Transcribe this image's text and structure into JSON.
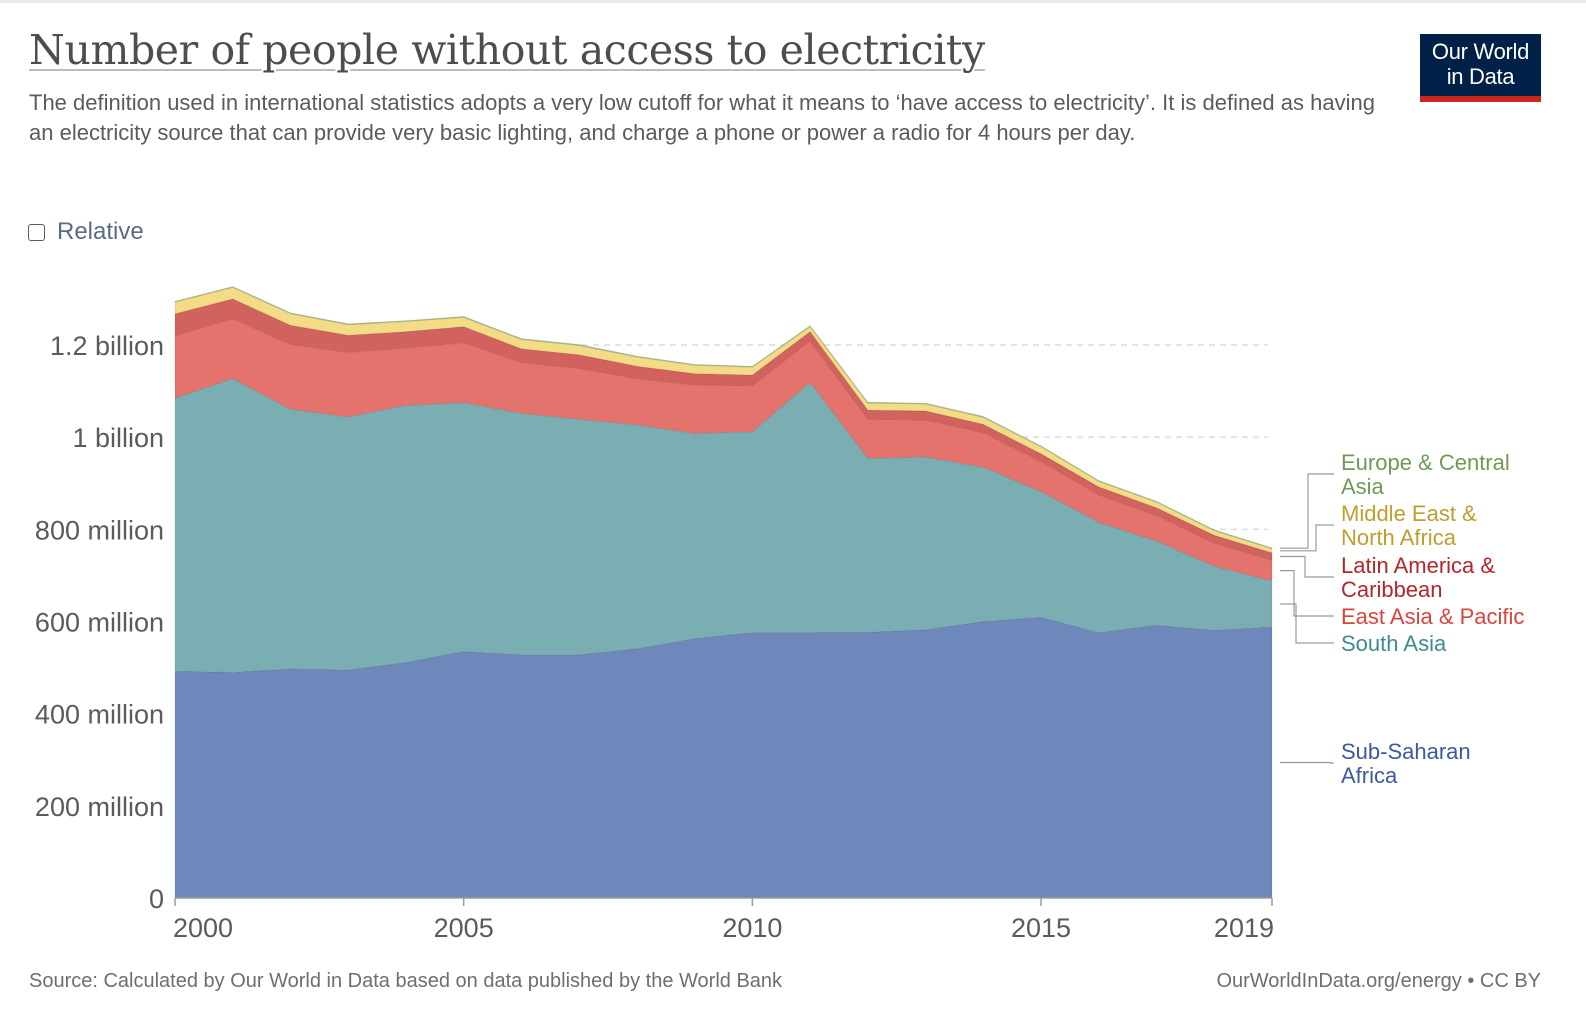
{
  "title": "Number of people without access to electricity",
  "subtitle": "The definition used in international statistics adopts a very low cutoff for what it means to ‘have access to electricity’. It is defined as having an electricity source that can provide very basic lighting, and charge a phone or power a radio for 4 hours per day.",
  "logo": {
    "line1": "Our World",
    "line2": "in Data",
    "bg_color": "#002147",
    "accent_color": "#ce261e"
  },
  "relative_toggle": {
    "label": "Relative",
    "checked": false
  },
  "footer": {
    "source": "Source: Calculated by Our World in Data based on data published by the World Bank",
    "credit": "OurWorldInData.org/energy • CC BY"
  },
  "chart_data": {
    "type": "area",
    "stacked": true,
    "x": [
      2000,
      2001,
      2002,
      2003,
      2004,
      2005,
      2006,
      2007,
      2008,
      2009,
      2010,
      2011,
      2012,
      2013,
      2014,
      2015,
      2016,
      2017,
      2018,
      2019
    ],
    "xlim": [
      2000,
      2019
    ],
    "ylim": [
      0,
      1300000000
    ],
    "x_ticks": [
      {
        "value": 2000,
        "label": "2000"
      },
      {
        "value": 2005,
        "label": "2005"
      },
      {
        "value": 2010,
        "label": "2010"
      },
      {
        "value": 2015,
        "label": "2015"
      },
      {
        "value": 2019,
        "label": "2019"
      }
    ],
    "y_ticks": [
      {
        "value": 0,
        "label": "0"
      },
      {
        "value": 200000000,
        "label": "200 million"
      },
      {
        "value": 400000000,
        "label": "400 million"
      },
      {
        "value": 600000000,
        "label": "600 million"
      },
      {
        "value": 800000000,
        "label": "800 million"
      },
      {
        "value": 1000000000,
        "label": "1 billion"
      },
      {
        "value": 1200000000,
        "label": "1.2 billion"
      }
    ],
    "grid": "horizontal dashed",
    "legend": "right, end-of-line labels",
    "series": [
      {
        "name": "Sub-Saharan Africa",
        "color": "#6f88bc",
        "label_color": "#3c5b9c",
        "values": [
          492000000,
          490000000,
          497000000,
          495000000,
          511000000,
          535000000,
          528000000,
          528000000,
          541000000,
          563000000,
          576000000,
          576000000,
          577000000,
          582000000,
          600000000,
          609000000,
          576000000,
          592000000,
          581000000,
          588000000
        ]
      },
      {
        "name": "South Asia",
        "color": "#7aaeb3",
        "label_color": "#3f8b91",
        "values": [
          593000000,
          637000000,
          564000000,
          549000000,
          558000000,
          540000000,
          524000000,
          511000000,
          486000000,
          445000000,
          436000000,
          543000000,
          377000000,
          375000000,
          335000000,
          273000000,
          239000000,
          183000000,
          139000000,
          100000000
        ]
      },
      {
        "name": "East Asia & Pacific",
        "color": "#e5736d",
        "label_color": "#d9443c",
        "values": [
          135000000,
          130000000,
          140000000,
          140000000,
          125000000,
          130000000,
          110000000,
          110000000,
          100000000,
          105000000,
          100000000,
          90000000,
          85000000,
          80000000,
          75000000,
          65000000,
          60000000,
          55000000,
          50000000,
          45000000
        ]
      },
      {
        "name": "Latin America & Caribbean",
        "color": "#d2625d",
        "label_color": "#b2272a",
        "values": [
          48000000,
          43000000,
          42000000,
          37000000,
          35000000,
          35000000,
          30000000,
          30000000,
          27000000,
          25000000,
          23000000,
          20000000,
          20000000,
          20000000,
          18000000,
          17000000,
          17000000,
          17000000,
          17000000,
          16000000
        ]
      },
      {
        "name": "Middle East & North Africa",
        "color": "#f3dc85",
        "label_color": "#bf9d2e",
        "values": [
          25000000,
          25000000,
          25000000,
          23000000,
          22000000,
          20000000,
          20000000,
          20000000,
          20000000,
          18000000,
          17000000,
          11000000,
          15000000,
          15000000,
          15000000,
          15000000,
          12000000,
          12000000,
          10000000,
          9000000
        ]
      },
      {
        "name": "Europe & Central Asia",
        "color": "#a2c488",
        "label_color": "#6f9b54",
        "values": [
          2000000,
          2000000,
          2000000,
          2000000,
          2000000,
          2000000,
          2000000,
          2000000,
          2000000,
          2000000,
          2000000,
          2000000,
          2000000,
          2000000,
          2000000,
          2000000,
          2000000,
          2000000,
          2000000,
          2000000
        ]
      }
    ]
  }
}
